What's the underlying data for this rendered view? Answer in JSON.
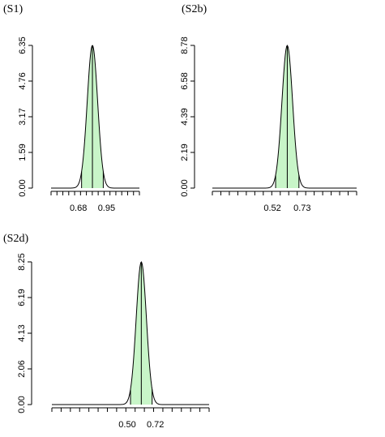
{
  "figure": {
    "colors": {
      "hpd_fill": "#c8f5c8",
      "line": "#000000",
      "background": "#ffffff"
    }
  },
  "chart_data": [
    {
      "type": "area",
      "panel": "S1",
      "title": "(S1)",
      "ylim": [
        0,
        6.35
      ],
      "yticks": [
        "0.00",
        "1.59",
        "3.17",
        "4.76",
        "6.35"
      ],
      "xticks_labeled": [
        "0.68",
        "0.95"
      ],
      "x_tick_count": 16,
      "mode": 0.815,
      "mean": 0.815,
      "hpd_interval": [
        0.68,
        0.95
      ],
      "x_range": [
        0.3,
        1.4
      ],
      "sd": 0.065,
      "peak": 6.35,
      "grid": false,
      "legend": "none"
    },
    {
      "type": "area",
      "panel": "S2b",
      "title": "(S2b)",
      "ylim": [
        0,
        8.78
      ],
      "yticks": [
        "0.00",
        "2.19",
        "4.39",
        "6.58",
        "8.78"
      ],
      "xticks_labeled": [
        "0.52",
        "0.73"
      ],
      "x_tick_count": 18,
      "mode": 0.625,
      "mean": 0.625,
      "hpd_interval": [
        0.52,
        0.73
      ],
      "x_range": [
        -0.05,
        1.25
      ],
      "sd": 0.048,
      "peak": 8.78,
      "grid": false,
      "legend": "none"
    },
    {
      "type": "area",
      "panel": "S2d",
      "title": "(S2d)",
      "ylim": [
        0,
        8.25
      ],
      "yticks": [
        "0.00",
        "2.06",
        "4.13",
        "6.19",
        "8.25"
      ],
      "xticks_labeled": [
        "0.50",
        "0.72"
      ],
      "x_tick_count": 18,
      "mode": 0.61,
      "mean": 0.61,
      "hpd_interval": [
        0.5,
        0.72
      ],
      "x_range": [
        -0.3,
        1.3
      ],
      "sd": 0.052,
      "peak": 8.25,
      "grid": false,
      "legend": "none"
    }
  ]
}
